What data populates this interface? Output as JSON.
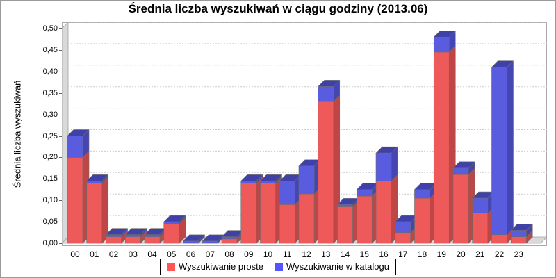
{
  "title": "Średnia liczba wyszukiwań w ciągu godziny (2013.06)",
  "y_axis": {
    "label": "Średnia liczba wyszukiwań",
    "ticks": [
      "0,00",
      "0,05",
      "0,10",
      "0,15",
      "0,20",
      "0,25",
      "0,30",
      "0,35",
      "0,40",
      "0,45",
      "0,50"
    ]
  },
  "legend": {
    "position": "bottom",
    "items": [
      {
        "label": "Wyszukiwanie proste",
        "color": "#ff5555"
      },
      {
        "label": "Wyszukiwanie w katalogu",
        "color": "#5555ff"
      }
    ]
  },
  "colors": {
    "red_front": "#ee5a5a",
    "red_side": "#bf4646",
    "red_top": "#a83d3d",
    "blue_front": "#5a5cdf",
    "blue_side": "#4446b2",
    "blue_top": "#3f41a8",
    "grid": "#cccccc",
    "wall_fill": "#d9d9d9",
    "wall_edge": "#a0a0a0",
    "plot_border": "#aaaaaa",
    "bar_edge": "#6b6b6b"
  },
  "chart_data": {
    "type": "bar",
    "stacked": true,
    "effect": "3d",
    "title": "Średnia liczba wyszukiwań w ciągu godziny (2013.06)",
    "xlabel": "",
    "ylabel": "Średnia liczba wyszukiwań",
    "ylim": [
      0,
      0.5
    ],
    "ytick_step": 0.05,
    "grid": true,
    "legend_position": "bottom",
    "categories": [
      "00",
      "01",
      "02",
      "03",
      "04",
      "05",
      "06",
      "07",
      "08",
      "09",
      "10",
      "11",
      "12",
      "13",
      "14",
      "15",
      "16",
      "17",
      "18",
      "19",
      "20",
      "21",
      "22",
      "23"
    ],
    "series": [
      {
        "name": "Wyszukiwanie proste",
        "color": "#ff5555",
        "values": [
          0.2,
          0.14,
          0.015,
          0.015,
          0.015,
          0.045,
          0.0,
          0.0,
          0.01,
          0.14,
          0.14,
          0.09,
          0.115,
          0.33,
          0.085,
          0.11,
          0.145,
          0.025,
          0.105,
          0.445,
          0.16,
          0.07,
          0.02,
          0.015
        ]
      },
      {
        "name": "Wyszukiwanie w katalogu",
        "color": "#5555ff",
        "values": [
          0.05,
          0.005,
          0.005,
          0.005,
          0.005,
          0.005,
          0.005,
          0.005,
          0.005,
          0.005,
          0.005,
          0.055,
          0.065,
          0.035,
          0.005,
          0.015,
          0.065,
          0.025,
          0.02,
          0.035,
          0.015,
          0.035,
          0.39,
          0.015
        ]
      }
    ]
  }
}
